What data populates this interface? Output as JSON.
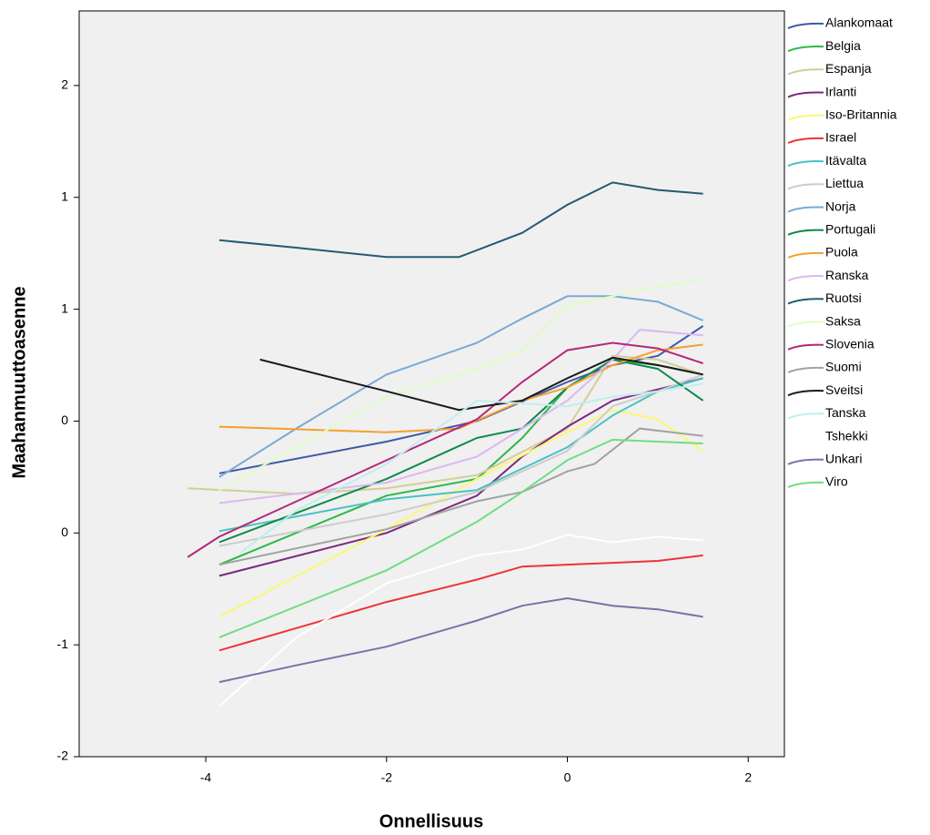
{
  "chart_data": {
    "type": "line",
    "x_label": "Onnellisuus",
    "y_label": "Maahanmuuttoasenne",
    "xlim": [
      -5.4,
      2.4
    ],
    "ylim": [
      -1.6,
      2.4
    ],
    "xticks": [
      -4,
      -2,
      0,
      2
    ],
    "yticks": [
      2,
      {
        "value": 1.4,
        "label": "1"
      },
      {
        "value": 0.8,
        "label": "1"
      },
      {
        "value": 0.2,
        "label": "0"
      },
      {
        "value": -0.4,
        "label": "0"
      },
      {
        "value": -1.0,
        "label": "-1"
      },
      {
        "value": -1.6,
        "label": "-2"
      }
    ],
    "series": [
      {
        "name": "Alankomaat",
        "color": "#3e58ac",
        "x": [
          -3.85,
          -2,
          -1,
          0,
          0.5,
          1,
          1.5
        ],
        "values": [
          -0.08,
          0.09,
          0.2,
          0.41,
          0.5,
          0.55,
          0.71
        ]
      },
      {
        "name": "Belgia",
        "color": "#2eb848",
        "x": [
          -3.85,
          -2,
          -1,
          -0.5,
          0,
          0.5,
          1,
          1.5
        ],
        "values": [
          -0.57,
          -0.2,
          -0.11,
          0.11,
          0.38,
          0.53,
          0.5,
          0.45
        ]
      },
      {
        "name": "Espanja",
        "color": "#d3ce97",
        "x": [
          -4.2,
          -3,
          -2,
          -1,
          0,
          0.5,
          1,
          1.5
        ],
        "values": [
          -0.16,
          -0.19,
          -0.16,
          -0.09,
          0.16,
          0.55,
          0.53,
          0.45
        ]
      },
      {
        "name": "Irlanti",
        "color": "#7c287d",
        "x": [
          -3.85,
          -2,
          -1,
          -0.5,
          0,
          0.5,
          1.5
        ],
        "values": [
          -0.63,
          -0.4,
          -0.2,
          0.01,
          0.17,
          0.31,
          0.43
        ]
      },
      {
        "name": "Iso-Britannia",
        "color": "#fbf873",
        "x": [
          -3.85,
          -2,
          -1,
          0,
          0.5,
          1,
          1.5
        ],
        "values": [
          -0.85,
          -0.38,
          -0.11,
          0.14,
          0.26,
          0.21,
          0.04
        ]
      },
      {
        "name": "Israel",
        "color": "#ef3338",
        "x": [
          -3.85,
          -2,
          -1,
          -0.5,
          0,
          0.5,
          1,
          1.5
        ],
        "values": [
          -1.03,
          -0.77,
          -0.65,
          -0.58,
          -0.57,
          -0.56,
          -0.55,
          -0.52
        ]
      },
      {
        "name": "Itävalta",
        "color": "#48c2c5",
        "x": [
          -3.85,
          -2,
          -1,
          0,
          0.5,
          1,
          1.5
        ],
        "values": [
          -0.39,
          -0.22,
          -0.17,
          0.06,
          0.23,
          0.36,
          0.43
        ]
      },
      {
        "name": "Liettua",
        "color": "#cccccc",
        "x": [
          -3.85,
          -2,
          -1,
          0,
          0.5,
          1,
          1.5
        ],
        "values": [
          -0.47,
          -0.3,
          -0.18,
          0.04,
          0.28,
          0.36,
          0.45
        ]
      },
      {
        "name": "Norja",
        "color": "#7aaad5",
        "x": [
          -3.85,
          -3,
          -2,
          -1,
          -0.5,
          0,
          0.5,
          1,
          1.5
        ],
        "values": [
          -0.1,
          0.16,
          0.45,
          0.62,
          0.75,
          0.87,
          0.87,
          0.84,
          0.74
        ]
      },
      {
        "name": "Portugali",
        "color": "#0d8a4c",
        "x": [
          -3.85,
          -2,
          -1,
          -0.5,
          0,
          0.5,
          1,
          1.5
        ],
        "values": [
          -0.45,
          -0.11,
          0.11,
          0.16,
          0.38,
          0.53,
          0.48,
          0.31
        ]
      },
      {
        "name": "Puola",
        "color": "#f5a02c",
        "x": [
          -3.85,
          -2,
          -1.2,
          -0.5,
          0,
          0.5,
          1,
          1.5
        ],
        "values": [
          0.17,
          0.14,
          0.16,
          0.31,
          0.38,
          0.5,
          0.58,
          0.61
        ]
      },
      {
        "name": "Ranska",
        "color": "#dcb8f0",
        "x": [
          -3.85,
          -2,
          -1,
          0,
          0.5,
          0.8,
          1.5
        ],
        "values": [
          -0.24,
          -0.13,
          0.01,
          0.31,
          0.53,
          0.69,
          0.66
        ]
      },
      {
        "name": "Ruotsi",
        "color": "#235b72",
        "x": [
          -3.85,
          -3,
          -2,
          -1.2,
          -0.5,
          0,
          0.5,
          1,
          1.5
        ],
        "values": [
          1.17,
          1.13,
          1.08,
          1.08,
          1.21,
          1.36,
          1.48,
          1.44,
          1.42
        ]
      },
      {
        "name": "Saksa",
        "color": "#dffdc3",
        "x": [
          -3.85,
          -3,
          -2,
          -1,
          -0.5,
          0,
          0.5,
          1,
          1.5
        ],
        "values": [
          -0.17,
          0.06,
          0.33,
          0.48,
          0.58,
          0.82,
          0.87,
          0.92,
          0.96
        ]
      },
      {
        "name": "Slovenia",
        "color": "#b3287a",
        "x": [
          -4.2,
          -3.85,
          -2,
          -1,
          -0.5,
          0,
          0.5,
          1,
          1.5
        ],
        "values": [
          -0.53,
          -0.42,
          -0.01,
          0.21,
          0.41,
          0.58,
          0.62,
          0.59,
          0.51
        ]
      },
      {
        "name": "Suomi",
        "color": "#a2a2a2",
        "x": [
          -3.85,
          -2,
          -1,
          -0.5,
          0,
          0.3,
          0.8,
          1.5
        ],
        "values": [
          -0.57,
          -0.38,
          -0.23,
          -0.18,
          -0.07,
          -0.03,
          0.16,
          0.12
        ]
      },
      {
        "name": "Sveitsi",
        "color": "#1a1a1a",
        "x": [
          -3.4,
          -2,
          -1.2,
          -0.5,
          0,
          0.5,
          1,
          1.5
        ],
        "values": [
          0.53,
          0.36,
          0.26,
          0.31,
          0.43,
          0.54,
          0.5,
          0.45
        ]
      },
      {
        "name": "Tanska",
        "color": "#bfeeee",
        "x": [
          -3.6,
          -3,
          -2,
          -1,
          0,
          0.5,
          1,
          1.5
        ],
        "values": [
          -0.5,
          -0.28,
          -0.03,
          0.31,
          0.28,
          0.33,
          0.36,
          0.4
        ]
      },
      {
        "name": "Tshekki",
        "color": "#ffffff",
        "x": [
          -3.85,
          -3,
          -2,
          -1,
          -0.5,
          0,
          0.5,
          1,
          1.5
        ],
        "values": [
          -1.33,
          -0.96,
          -0.67,
          -0.52,
          -0.49,
          -0.41,
          -0.45,
          -0.42,
          -0.44
        ]
      },
      {
        "name": "Unkari",
        "color": "#7773a8",
        "x": [
          -3.85,
          -3,
          -2,
          -1,
          -0.5,
          0,
          0.5,
          1,
          1.5
        ],
        "values": [
          -1.2,
          -1.11,
          -1.01,
          -0.87,
          -0.79,
          -0.75,
          -0.79,
          -0.81,
          -0.85
        ]
      },
      {
        "name": "Viro",
        "color": "#70dd83",
        "x": [
          -3.85,
          -2,
          -1,
          -0.5,
          0,
          0.5,
          1,
          1.5
        ],
        "values": [
          -0.96,
          -0.6,
          -0.34,
          -0.18,
          -0.01,
          0.1,
          0.09,
          0.08
        ]
      }
    ]
  }
}
